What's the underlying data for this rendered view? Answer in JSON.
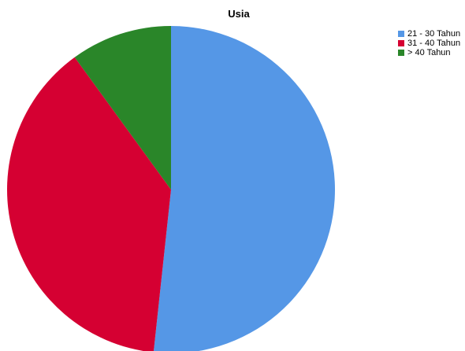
{
  "chart_data": {
    "type": "pie",
    "title": "Usia",
    "slices": [
      {
        "label": "21 - 30 Tahun",
        "value": 51.7,
        "color": "#5597E6"
      },
      {
        "label": "31 - 40 Tahun",
        "value": 38.3,
        "color": "#D50032"
      },
      {
        "label": "> 40 Tahun",
        "value": 10.0,
        "color": "#2A8629"
      }
    ],
    "legend_placement": "top-right"
  }
}
